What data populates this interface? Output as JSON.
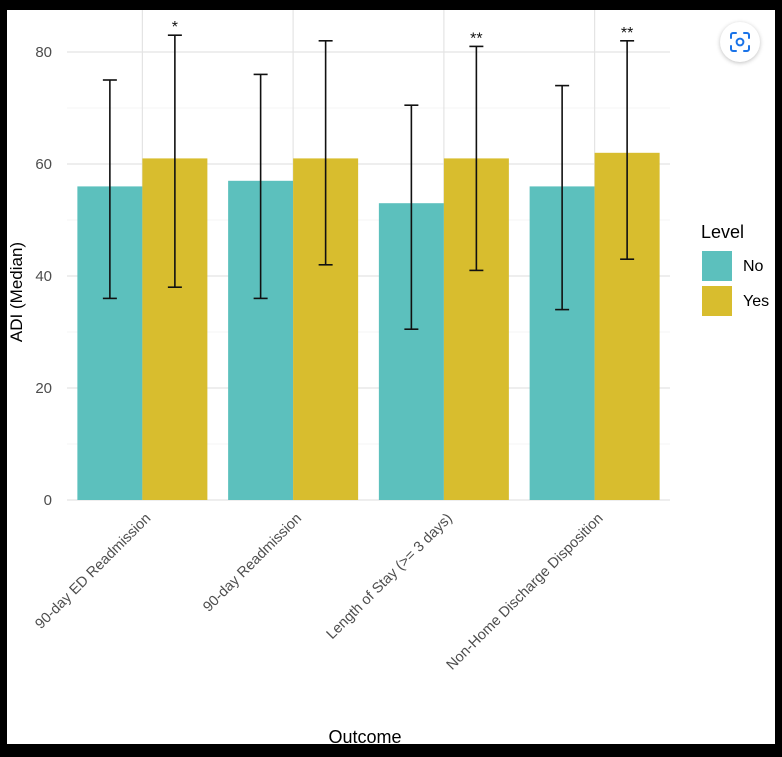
{
  "chart_data": {
    "type": "bar",
    "title": "",
    "xlabel": "Outcome",
    "ylabel": "ADI (Median)",
    "ylim": [
      0,
      85
    ],
    "yticks": [
      0,
      20,
      40,
      60,
      80
    ],
    "grid": true,
    "legend": {
      "title": "Level",
      "placement": "right"
    },
    "categories": [
      "90-day ED Readmission",
      "90-day Readmission",
      "Length of Stay (>= 3 days)",
      "Non-Home Discharge Disposition"
    ],
    "series": [
      {
        "name": "No",
        "color": "#5cc0bd",
        "values": [
          56,
          57,
          53,
          56
        ],
        "error_low": [
          36,
          36,
          30.5,
          34
        ],
        "error_high": [
          75,
          76,
          70.5,
          74
        ]
      },
      {
        "name": "Yes",
        "color": "#d8bd2e",
        "values": [
          61,
          61,
          61,
          62
        ],
        "error_low": [
          38,
          42,
          41,
          43
        ],
        "error_high": [
          83,
          82,
          81,
          82
        ]
      }
    ],
    "annotations": [
      "*",
      "",
      "**",
      "**"
    ]
  },
  "ui": {
    "lens_icon": "lens-search-icon"
  }
}
